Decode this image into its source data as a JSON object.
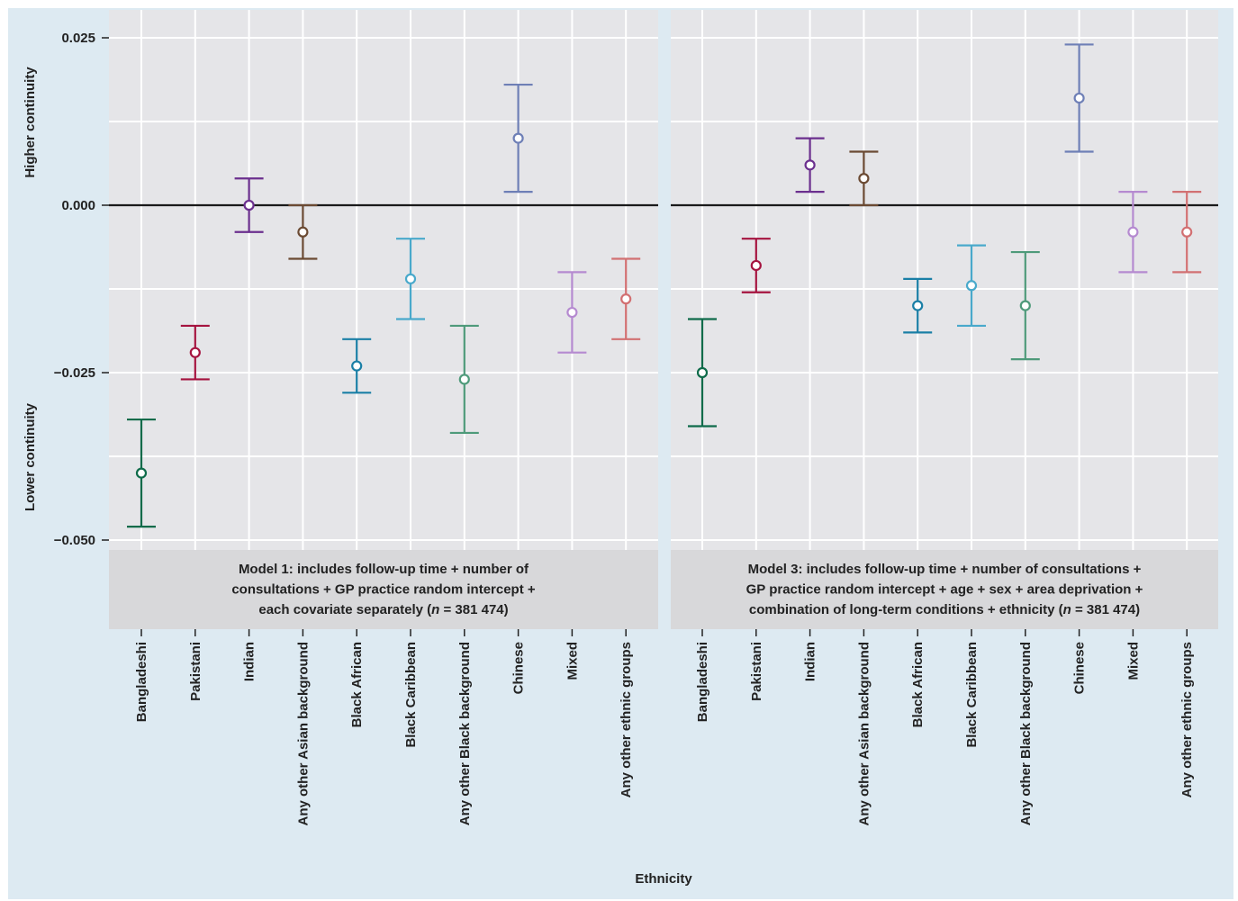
{
  "chart_data": {
    "type": "errorbar",
    "xlabel": "Ethnicity",
    "ylabel_upper": "Higher continuity",
    "ylabel_lower": "Lower continuity",
    "ylim": [
      -0.05,
      0.025
    ],
    "yticks": [
      0.025,
      0.0,
      -0.025,
      -0.05
    ],
    "ytick_labels": [
      "0.025",
      "0.000",
      "−0.025",
      "−0.050"
    ],
    "grid": true,
    "reference_line": 0.0,
    "categories": [
      "Bangladeshi",
      "Pakistani",
      "Indian",
      "Any other Asian background",
      "Black African",
      "Black Caribbean",
      "Any other Black background",
      "Chinese",
      "Mixed",
      "Any other ethnic groups"
    ],
    "colors": [
      "#0f6b4a",
      "#a5133f",
      "#6b2f8e",
      "#6b4a33",
      "#1a7fa6",
      "#49a9cb",
      "#4e9a7a",
      "#6e7fb6",
      "#b58ad0",
      "#d27072"
    ],
    "panels": [
      {
        "title_lines": [
          "Model 1: includes follow-up time + number of",
          "consultations + GP practice random intercept +",
          "each covariate separately (n = 381 474)"
        ],
        "estimate": [
          -0.04,
          -0.022,
          0.0,
          -0.004,
          -0.024,
          -0.011,
          -0.026,
          0.01,
          -0.016,
          -0.014
        ],
        "lower": [
          -0.048,
          -0.026,
          -0.004,
          -0.008,
          -0.028,
          -0.017,
          -0.034,
          0.002,
          -0.022,
          -0.02
        ],
        "upper": [
          -0.032,
          -0.018,
          0.004,
          0.0,
          -0.02,
          -0.005,
          -0.018,
          0.018,
          -0.01,
          -0.008
        ]
      },
      {
        "title_lines": [
          "Model 3: includes follow-up time + number of consultations +",
          "GP practice random intercept + age + sex + area deprivation +",
          "combination of long-term conditions + ethnicity (n = 381 474)"
        ],
        "estimate": [
          -0.025,
          -0.009,
          0.006,
          0.004,
          -0.015,
          -0.012,
          -0.015,
          0.016,
          -0.004,
          -0.004
        ],
        "lower": [
          -0.033,
          -0.013,
          0.002,
          0.0,
          -0.019,
          -0.018,
          -0.023,
          0.008,
          -0.01,
          -0.01
        ],
        "upper": [
          -0.017,
          -0.005,
          0.01,
          0.008,
          -0.011,
          -0.006,
          -0.007,
          0.024,
          0.002,
          0.002
        ]
      }
    ]
  }
}
